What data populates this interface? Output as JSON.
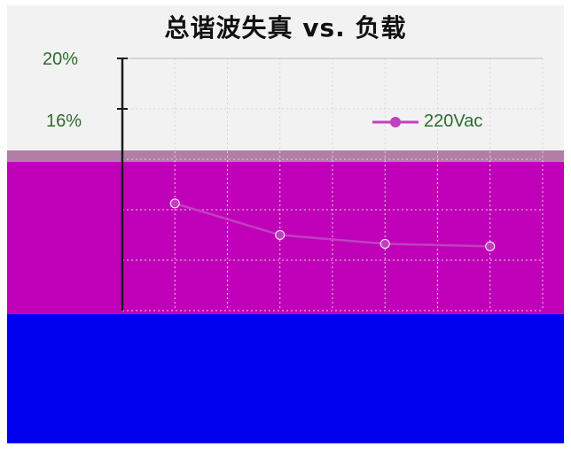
{
  "chart_data": {
    "type": "line",
    "title": "总谐波失真 vs. 负载",
    "xlabel": "",
    "ylabel": "",
    "ylim": [
      0,
      20
    ],
    "yticks": [
      "20%",
      "16%"
    ],
    "grid": true,
    "legend_position": "top-right",
    "series": [
      {
        "name": "220Vac",
        "color": "#c040c0",
        "x": [
          1,
          2,
          3,
          4
        ],
        "y": [
          8.5,
          6.0,
          5.3,
          5.1
        ]
      }
    ]
  },
  "colors": {
    "background": "#f2f2f2",
    "overlay_gray": "#b07ea6",
    "overlay_purple": "#c000b8",
    "overlay_blue": "#0000ee",
    "tick_text": "#2d6b2d"
  }
}
